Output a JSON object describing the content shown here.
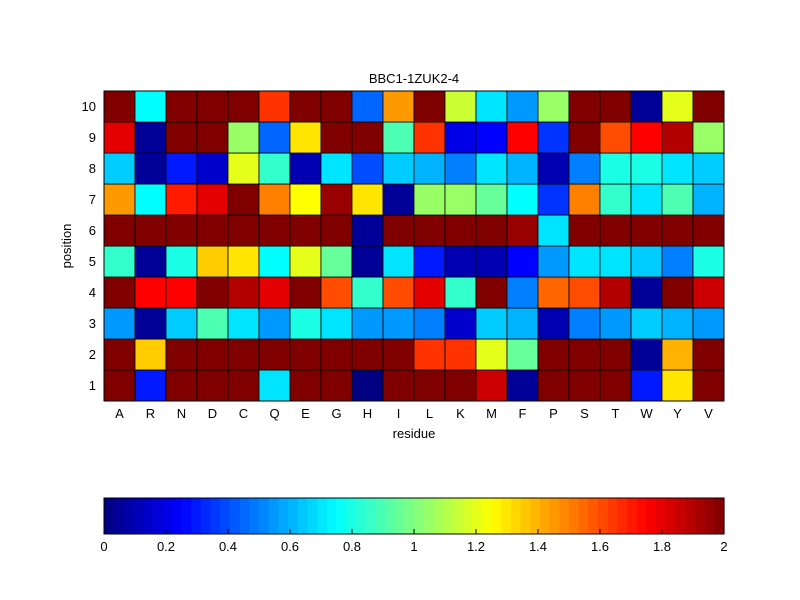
{
  "chart_data": {
    "type": "heatmap",
    "title": "BBC1-1ZUK2-4",
    "xlabel": "residue",
    "ylabel": "position",
    "x_categories": [
      "A",
      "R",
      "N",
      "D",
      "C",
      "Q",
      "E",
      "G",
      "H",
      "I",
      "L",
      "K",
      "M",
      "F",
      "P",
      "S",
      "T",
      "W",
      "Y",
      "V"
    ],
    "y_categories": [
      "1",
      "2",
      "3",
      "4",
      "5",
      "6",
      "7",
      "8",
      "9",
      "10"
    ],
    "colormap": "jet",
    "clim": [
      0,
      2
    ],
    "colorbar": {
      "placement": "bottom",
      "ticks": [
        0,
        0.2,
        0.4,
        0.6,
        0.8,
        1,
        1.2,
        1.4,
        1.6,
        1.8,
        2
      ],
      "tick_labels": [
        "0",
        "0.2",
        "0.4",
        "0.6",
        "0.8",
        "1",
        "1.2",
        "1.4",
        "1.6",
        "1.8",
        "2"
      ]
    },
    "values_by_position": [
      [
        2.0,
        0.3,
        2.0,
        2.0,
        2.0,
        0.7,
        2.0,
        2.0,
        0.0,
        2.0,
        2.0,
        2.0,
        1.85,
        0.05,
        2.0,
        2.0,
        2.0,
        0.3,
        1.3,
        2.0
      ],
      [
        2.0,
        1.35,
        2.0,
        2.0,
        2.0,
        2.0,
        2.0,
        2.0,
        2.0,
        2.0,
        1.65,
        1.65,
        1.2,
        0.95,
        2.0,
        2.0,
        2.0,
        0.05,
        1.4,
        2.0
      ],
      [
        0.55,
        0.05,
        0.65,
        0.9,
        0.7,
        0.55,
        0.8,
        0.7,
        0.55,
        0.55,
        0.5,
        0.15,
        0.65,
        0.6,
        0.1,
        0.5,
        0.55,
        0.65,
        0.6,
        0.55
      ],
      [
        2.0,
        1.75,
        1.75,
        2.0,
        1.9,
        1.8,
        2.0,
        1.6,
        0.85,
        1.6,
        1.8,
        0.85,
        2.0,
        0.5,
        1.55,
        1.6,
        1.9,
        0.05,
        2.0,
        1.85
      ],
      [
        0.85,
        0.05,
        0.8,
        1.35,
        1.3,
        0.75,
        1.2,
        0.95,
        0.05,
        0.7,
        0.3,
        0.1,
        0.1,
        0.25,
        0.55,
        0.7,
        0.7,
        0.65,
        0.5,
        0.8
      ],
      [
        2.0,
        2.0,
        2.0,
        2.0,
        2.0,
        2.0,
        2.0,
        2.0,
        0.05,
        2.0,
        2.0,
        2.0,
        2.0,
        1.95,
        0.7,
        2.0,
        2.0,
        2.0,
        2.0,
        2.0
      ],
      [
        1.45,
        0.75,
        1.7,
        1.8,
        2.0,
        1.5,
        1.25,
        1.95,
        1.3,
        0.05,
        1.05,
        1.05,
        0.95,
        0.75,
        0.35,
        1.5,
        0.85,
        0.7,
        0.9,
        0.6
      ],
      [
        0.65,
        0.05,
        0.3,
        0.15,
        1.2,
        0.85,
        0.1,
        0.7,
        0.4,
        0.65,
        0.6,
        0.5,
        0.7,
        0.6,
        0.1,
        0.5,
        0.8,
        0.8,
        0.7,
        0.65
      ],
      [
        1.8,
        0.05,
        2.0,
        2.0,
        1.05,
        0.45,
        1.3,
        2.0,
        2.0,
        0.9,
        1.65,
        0.2,
        0.25,
        1.75,
        0.35,
        2.0,
        1.6,
        1.75,
        1.9,
        1.05
      ],
      [
        2.0,
        0.75,
        2.0,
        2.0,
        2.0,
        1.65,
        2.0,
        2.0,
        0.45,
        1.45,
        2.0,
        1.15,
        0.7,
        0.55,
        1.05,
        2.0,
        2.0,
        0.05,
        1.2,
        2.0
      ]
    ]
  }
}
